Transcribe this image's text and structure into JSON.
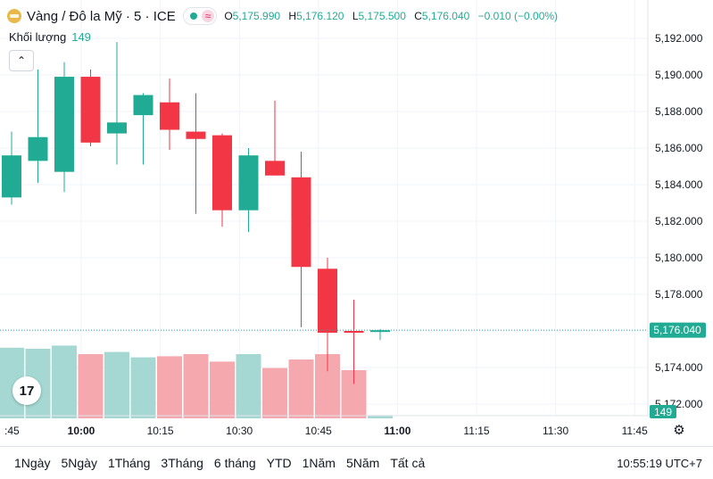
{
  "header": {
    "symbol": "Vàng / Đô la Mỹ · 5 · ICE",
    "approx_glyph": "≈",
    "o_label": "O",
    "o_value": "5,175.990",
    "h_label": "H",
    "h_value": "5,176.120",
    "l_label": "L",
    "l_value": "5,175.500",
    "c_label": "C",
    "c_value": "5,176.040",
    "change": "−0.010 (−0.00%)"
  },
  "volume": {
    "label": "Khối lượng",
    "value": "149"
  },
  "collapse_glyph": "⌃",
  "logo_text": "17",
  "settings_glyph": "⚙",
  "time_ranges": [
    "1Ngày",
    "5Ngày",
    "1Tháng",
    "3Tháng",
    "6 tháng",
    "YTD",
    "1Năm",
    "5Năm",
    "Tất cả"
  ],
  "clock": "10:55:19 UTC+7",
  "colors": {
    "up": "#22ab94",
    "down": "#f23645",
    "vol_up": "#a5d8d2",
    "vol_down": "#f5a8ae"
  },
  "chart_data": {
    "type": "candlestick",
    "title": "Vàng / Đô la Mỹ · 5 · ICE",
    "y_ticks": [
      "5,172.000",
      "5,174.000",
      "5,176.000",
      "5,178.000",
      "5,180.000",
      "5,182.000",
      "5,184.000",
      "5,186.000",
      "5,188.000",
      "5,190.000",
      "5,192.000"
    ],
    "x_ticks": [
      ":45",
      "10:00",
      "10:15",
      "10:30",
      "10:45",
      "11:00",
      "11:15",
      "11:30",
      "11:45"
    ],
    "ylim": [
      5171.6,
      5193.0
    ],
    "last_price_label": "5,176.040",
    "last_price": 5176.04,
    "volume_label": "149",
    "candles": [
      {
        "open": 5183.3,
        "high": 5186.9,
        "low": 5182.9,
        "close": 5185.6,
        "vol": 0.66
      },
      {
        "open": 5185.3,
        "high": 5190.3,
        "low": 5184.1,
        "close": 5186.6,
        "vol": 0.65
      },
      {
        "open": 5184.7,
        "high": 5190.7,
        "low": 5183.6,
        "close": 5189.9,
        "vol": 0.68
      },
      {
        "open": 5189.9,
        "high": 5190.3,
        "low": 5186.1,
        "close": 5186.3,
        "vol": 0.6
      },
      {
        "open": 5186.8,
        "high": 5191.8,
        "low": 5185.1,
        "close": 5187.4,
        "vol": 0.62
      },
      {
        "open": 5187.8,
        "high": 5189.0,
        "low": 5185.1,
        "close": 5188.9,
        "vol": 0.57
      },
      {
        "open": 5188.5,
        "high": 5189.8,
        "low": 5185.9,
        "close": 5187.0,
        "vol": 0.58
      },
      {
        "open": 5186.9,
        "high": 5189.0,
        "low": 5182.4,
        "close": 5186.5,
        "vol": 0.6
      },
      {
        "open": 5186.7,
        "high": 5186.8,
        "low": 5181.7,
        "close": 5182.6,
        "vol": 0.53
      },
      {
        "open": 5182.6,
        "high": 5186.0,
        "low": 5181.4,
        "close": 5185.6,
        "vol": 0.6
      },
      {
        "open": 5185.3,
        "high": 5188.6,
        "low": 5184.5,
        "close": 5184.5,
        "vol": 0.47
      },
      {
        "open": 5184.4,
        "high": 5185.8,
        "low": 5176.2,
        "close": 5179.5,
        "vol": 0.55
      },
      {
        "open": 5179.4,
        "high": 5180.0,
        "low": 5173.8,
        "close": 5175.9,
        "vol": 0.6
      },
      {
        "open": 5176.0,
        "high": 5177.7,
        "low": 5173.1,
        "close": 5175.9,
        "vol": 0.45
      },
      {
        "open": 5176.0,
        "high": 5176.1,
        "low": 5175.5,
        "close": 5176.04,
        "vol": 0.03
      }
    ]
  }
}
